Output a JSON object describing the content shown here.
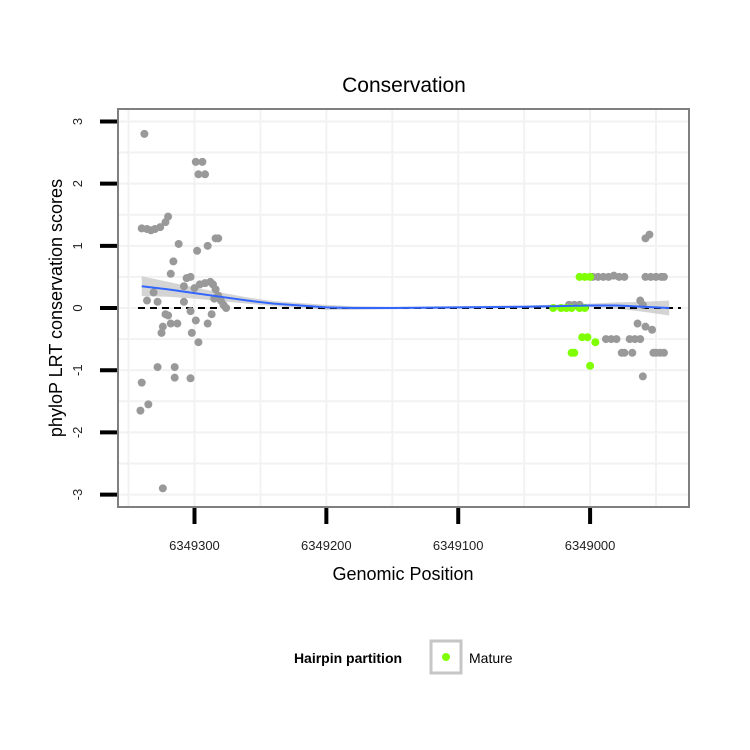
{
  "chart_data": {
    "type": "scatter",
    "title": "Conservation",
    "xlabel": "Genomic Position",
    "ylabel": "phyloP LRT conservation scores",
    "x_reversed": true,
    "xlim": [
      6349358,
      6348925
    ],
    "ylim": [
      -3.2,
      3.2
    ],
    "x_ticks": [
      6349300,
      6349200,
      6349100,
      6349000
    ],
    "x_tick_labels": [
      "6349300",
      "6349200",
      "6349100",
      "6349000"
    ],
    "y_ticks": [
      -3,
      -2,
      -1,
      0,
      1,
      2,
      3
    ],
    "y_tick_labels": [
      "-3",
      "-2",
      "-1",
      "0",
      "1",
      "2",
      "3"
    ],
    "reference_line": {
      "y": 0,
      "style": "dashed"
    },
    "colors": {
      "other": "#999999",
      "mature": "#7fff00",
      "smooth": "#3366ff",
      "ribbon": "#c6c6c6",
      "grid": "#f2f2f2",
      "border": "#7f7f7f"
    },
    "legend": {
      "title": "Hairpin partition",
      "entries": [
        {
          "label": "Mature",
          "color": "#7fff00"
        }
      ],
      "position": "bottom"
    },
    "series": [
      {
        "name": "Other",
        "points": [
          [
            6349338,
            2.8
          ],
          [
            6349340,
            1.28
          ],
          [
            6349336,
            1.27
          ],
          [
            6349333,
            1.25
          ],
          [
            6349330,
            1.27
          ],
          [
            6349326,
            1.3
          ],
          [
            6349322,
            1.38
          ],
          [
            6349320,
            1.47
          ],
          [
            6349331,
            0.25
          ],
          [
            6349336,
            0.12
          ],
          [
            6349328,
            0.1
          ],
          [
            6349318,
            0.55
          ],
          [
            6349316,
            0.75
          ],
          [
            6349312,
            1.03
          ],
          [
            6349308,
            0.35
          ],
          [
            6349306,
            0.48
          ],
          [
            6349303,
            0.5
          ],
          [
            6349300,
            0.32
          ],
          [
            6349299,
            2.35
          ],
          [
            6349297,
            2.15
          ],
          [
            6349294,
            2.35
          ],
          [
            6349292,
            2.15
          ],
          [
            6349298,
            0.92
          ],
          [
            6349290,
            1.0
          ],
          [
            6349284,
            1.12
          ],
          [
            6349282,
            1.12
          ],
          [
            6349296,
            0.38
          ],
          [
            6349292,
            0.4
          ],
          [
            6349288,
            0.42
          ],
          [
            6349286,
            0.38
          ],
          [
            6349284,
            0.3
          ],
          [
            6349282,
            0.2
          ],
          [
            6349280,
            0.12
          ],
          [
            6349278,
            0.05
          ],
          [
            6349276,
            0.0
          ],
          [
            6349285,
            0.15
          ],
          [
            6349287,
            -0.1
          ],
          [
            6349290,
            -0.25
          ],
          [
            6349299,
            -0.2
          ],
          [
            6349303,
            -0.05
          ],
          [
            6349308,
            0.1
          ],
          [
            6349313,
            -0.25
          ],
          [
            6349318,
            -0.25
          ],
          [
            6349320,
            -0.12
          ],
          [
            6349322,
            -0.1
          ],
          [
            6349324,
            -0.3
          ],
          [
            6349325,
            -0.4
          ],
          [
            6349297,
            -0.55
          ],
          [
            6349302,
            -0.4
          ],
          [
            6349328,
            -0.95
          ],
          [
            6349315,
            -0.95
          ],
          [
            6349315,
            -1.12
          ],
          [
            6349303,
            -1.13
          ],
          [
            6349340,
            -1.2
          ],
          [
            6349335,
            -1.55
          ],
          [
            6349341,
            -1.65
          ],
          [
            6349324,
            -2.9
          ],
          [
            6348998,
            0.5
          ],
          [
            6348994,
            0.5
          ],
          [
            6348990,
            0.5
          ],
          [
            6348986,
            0.5
          ],
          [
            6348982,
            0.52
          ],
          [
            6348978,
            0.5
          ],
          [
            6348974,
            0.5
          ],
          [
            6348958,
            0.5
          ],
          [
            6348954,
            0.5
          ],
          [
            6348950,
            0.5
          ],
          [
            6348946,
            0.5
          ],
          [
            6348944,
            0.5
          ],
          [
            6348958,
            1.12
          ],
          [
            6348955,
            1.18
          ],
          [
            6348962,
            0.12
          ],
          [
            6348960,
            0.05
          ],
          [
            6348964,
            -0.25
          ],
          [
            6348958,
            -0.3
          ],
          [
            6348953,
            -0.35
          ],
          [
            6348970,
            -0.5
          ],
          [
            6348966,
            -0.5
          ],
          [
            6348962,
            -0.5
          ],
          [
            6348988,
            -0.5
          ],
          [
            6348984,
            -0.5
          ],
          [
            6348980,
            -0.5
          ],
          [
            6348968,
            -0.72
          ],
          [
            6348974,
            -0.72
          ],
          [
            6348976,
            -0.72
          ],
          [
            6348952,
            -0.72
          ],
          [
            6348950,
            -0.72
          ],
          [
            6348947,
            -0.72
          ],
          [
            6348944,
            -0.72
          ],
          [
            6348960,
            -1.1
          ],
          [
            6349016,
            0.05
          ],
          [
            6349012,
            0.05
          ],
          [
            6349008,
            0.05
          ]
        ]
      },
      {
        "name": "Mature",
        "points": [
          [
            6349008,
            0.5
          ],
          [
            6349004,
            0.5
          ],
          [
            6349000,
            0.5
          ],
          [
            6349012,
            -0.72
          ],
          [
            6349014,
            -0.72
          ],
          [
            6349006,
            -0.47
          ],
          [
            6349002,
            -0.47
          ],
          [
            6348996,
            -0.55
          ],
          [
            6349000,
            -0.93
          ],
          [
            6349028,
            0.0
          ],
          [
            6349022,
            0.0
          ],
          [
            6349018,
            0.0
          ],
          [
            6349014,
            0.0
          ],
          [
            6349008,
            0.0
          ],
          [
            6349004,
            0.0
          ]
        ]
      }
    ],
    "smooth": {
      "x": [
        6349340,
        6349320,
        6349300,
        6349280,
        6349260,
        6349240,
        6349220,
        6349200,
        6349180,
        6349150,
        6349100,
        6349050,
        6349000,
        6348980,
        6348960,
        6348940
      ],
      "y": [
        0.35,
        0.3,
        0.24,
        0.18,
        0.12,
        0.07,
        0.04,
        0.01,
        0.0,
        0.0,
        0.01,
        0.02,
        0.04,
        0.04,
        0.02,
        0.0
      ],
      "lower": [
        0.19,
        0.18,
        0.15,
        0.11,
        0.07,
        0.03,
        0.0,
        -0.03,
        -0.03,
        -0.02,
        -0.01,
        0.0,
        0.01,
        -0.01,
        -0.06,
        -0.12
      ],
      "upper": [
        0.51,
        0.42,
        0.33,
        0.25,
        0.17,
        0.11,
        0.08,
        0.05,
        0.03,
        0.02,
        0.03,
        0.04,
        0.07,
        0.09,
        0.1,
        0.12
      ]
    }
  }
}
